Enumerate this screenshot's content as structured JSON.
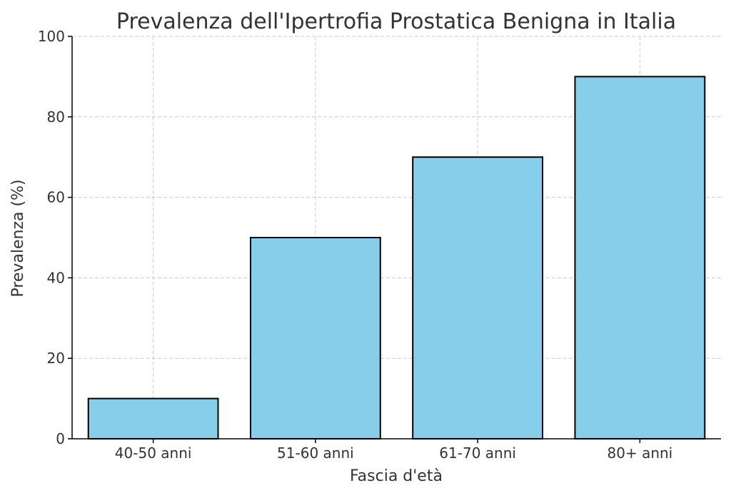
{
  "chart_data": {
    "type": "bar",
    "title": "Prevalenza dell'Ipertrofia Prostatica Benigna in Italia",
    "xlabel": "Fascia d'età",
    "ylabel": "Prevalenza (%)",
    "categories": [
      "40-50 anni",
      "51-60 anni",
      "61-70 anni",
      "80+ anni"
    ],
    "values": [
      10,
      50,
      70,
      90
    ],
    "ylim": [
      0,
      100
    ],
    "yticks": [
      0,
      20,
      40,
      60,
      80,
      100
    ],
    "grid": true,
    "bar_color": "#87ceeb",
    "bar_edge_color": "#000000"
  }
}
